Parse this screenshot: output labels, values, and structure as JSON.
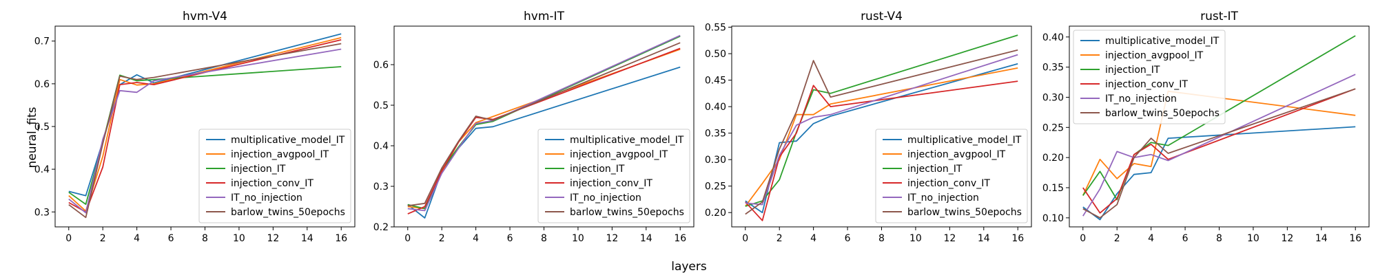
{
  "figure": {
    "supxlabel": "layers",
    "supylabel": "neural_fits"
  },
  "chart_data": [
    {
      "type": "line",
      "title": "hvm-V4",
      "xlabel": "",
      "ylabel": "",
      "xlim": [
        -0.8,
        16.8
      ],
      "ylim": [
        0.265,
        0.735
      ],
      "xticks": [
        0,
        2,
        4,
        6,
        8,
        10,
        12,
        14,
        16
      ],
      "yticks": [
        0.3,
        0.4,
        0.5,
        0.6,
        0.7
      ],
      "ytick_labels": [
        "0.3",
        "0.4",
        "0.5",
        "0.6",
        "0.7"
      ],
      "legend_position": "lower-right",
      "x": [
        0,
        1,
        2,
        3,
        4,
        5,
        16
      ],
      "series": [
        {
          "name": "multiplicative_model_IT",
          "color": "#1f77b4",
          "values": [
            0.348,
            0.338,
            0.465,
            0.598,
            0.621,
            0.602,
            0.717
          ]
        },
        {
          "name": "injection_avgpool_IT",
          "color": "#ff7f0e",
          "values": [
            0.338,
            0.302,
            0.43,
            0.61,
            0.597,
            0.6,
            0.708
          ]
        },
        {
          "name": "injection_IT",
          "color": "#2ca02c",
          "values": [
            0.346,
            0.318,
            0.463,
            0.62,
            0.607,
            0.61,
            0.64
          ]
        },
        {
          "name": "injection_conv_IT",
          "color": "#d62728",
          "values": [
            0.322,
            0.3,
            0.405,
            0.598,
            0.603,
            0.598,
            0.703
          ]
        },
        {
          "name": "IT_no_injection",
          "color": "#9467bd",
          "values": [
            0.33,
            0.298,
            0.47,
            0.584,
            0.58,
            0.607,
            0.681
          ]
        },
        {
          "name": "barlow_twins_50epochs",
          "color": "#8c564b",
          "values": [
            0.317,
            0.287,
            0.46,
            0.618,
            0.61,
            0.615,
            0.694
          ]
        }
      ]
    },
    {
      "type": "line",
      "title": "hvm-IT",
      "xlabel": "",
      "ylabel": "",
      "xlim": [
        -0.8,
        16.8
      ],
      "ylim": [
        0.2,
        0.695
      ],
      "xticks": [
        0,
        2,
        4,
        6,
        8,
        10,
        12,
        14,
        16
      ],
      "yticks": [
        0.2,
        0.3,
        0.4,
        0.5,
        0.6
      ],
      "ytick_labels": [
        "0.2",
        "0.3",
        "0.4",
        "0.5",
        "0.6"
      ],
      "legend_position": "lower-right",
      "x": [
        0,
        1,
        2,
        3,
        4,
        5,
        16
      ],
      "series": [
        {
          "name": "multiplicative_model_IT",
          "color": "#1f77b4",
          "values": [
            0.255,
            0.222,
            0.338,
            0.395,
            0.443,
            0.447,
            0.594
          ]
        },
        {
          "name": "injection_avgpool_IT",
          "color": "#ff7f0e",
          "values": [
            0.25,
            0.245,
            0.335,
            0.41,
            0.457,
            0.472,
            0.638
          ]
        },
        {
          "name": "injection_IT",
          "color": "#2ca02c",
          "values": [
            0.255,
            0.245,
            0.34,
            0.398,
            0.452,
            0.46,
            0.67
          ]
        },
        {
          "name": "injection_conv_IT",
          "color": "#d62728",
          "values": [
            0.232,
            0.25,
            0.338,
            0.41,
            0.47,
            0.465,
            0.64
          ]
        },
        {
          "name": "IT_no_injection",
          "color": "#9467bd",
          "values": [
            0.245,
            0.24,
            0.332,
            0.395,
            0.455,
            0.462,
            0.672
          ]
        },
        {
          "name": "barlow_twins_50epochs",
          "color": "#8c564b",
          "values": [
            0.252,
            0.258,
            0.345,
            0.412,
            0.473,
            0.463,
            0.654
          ]
        }
      ]
    },
    {
      "type": "line",
      "title": "rust-V4",
      "xlabel": "",
      "ylabel": "",
      "xlim": [
        -0.8,
        16.8
      ],
      "ylim": [
        0.173,
        0.552
      ],
      "xticks": [
        0,
        2,
        4,
        6,
        8,
        10,
        12,
        14,
        16
      ],
      "yticks": [
        0.2,
        0.25,
        0.3,
        0.35,
        0.4,
        0.45,
        0.5,
        0.55
      ],
      "ytick_labels": [
        "0.20",
        "0.25",
        "0.30",
        "0.35",
        "0.40",
        "0.45",
        "0.50",
        "0.55"
      ],
      "legend_position": "lower-right",
      "x": [
        0,
        1,
        2,
        3,
        4,
        5,
        16
      ],
      "series": [
        {
          "name": "multiplicative_model_IT",
          "color": "#1f77b4",
          "values": [
            0.222,
            0.2,
            0.332,
            0.335,
            0.368,
            0.382,
            0.481
          ]
        },
        {
          "name": "injection_avgpool_IT",
          "color": "#ff7f0e",
          "values": [
            0.212,
            0.255,
            0.3,
            0.385,
            0.385,
            0.405,
            0.473
          ]
        },
        {
          "name": "injection_IT",
          "color": "#2ca02c",
          "values": [
            0.212,
            0.222,
            0.262,
            0.352,
            0.432,
            0.425,
            0.535
          ]
        },
        {
          "name": "injection_conv_IT",
          "color": "#d62728",
          "values": [
            0.22,
            0.185,
            0.305,
            0.35,
            0.44,
            0.4,
            0.448
          ]
        },
        {
          "name": "IT_no_injection",
          "color": "#9467bd",
          "values": [
            0.218,
            0.215,
            0.308,
            0.365,
            0.38,
            0.385,
            0.498
          ]
        },
        {
          "name": "barlow_twins_50epochs",
          "color": "#8c564b",
          "values": [
            0.197,
            0.22,
            0.32,
            0.39,
            0.487,
            0.418,
            0.507
          ]
        }
      ]
    },
    {
      "type": "line",
      "title": "rust-IT",
      "xlabel": "",
      "ylabel": "",
      "xlim": [
        -0.8,
        16.8
      ],
      "ylim": [
        0.085,
        0.418
      ],
      "xticks": [
        0,
        2,
        4,
        6,
        8,
        10,
        12,
        14,
        16
      ],
      "yticks": [
        0.1,
        0.15,
        0.2,
        0.25,
        0.3,
        0.35,
        0.4
      ],
      "ytick_labels": [
        "0.10",
        "0.15",
        "0.20",
        "0.25",
        "0.30",
        "0.35",
        "0.40"
      ],
      "legend_position": "upper-left",
      "x": [
        0,
        1,
        2,
        3,
        4,
        5,
        16
      ],
      "series": [
        {
          "name": "multiplicative_model_IT",
          "color": "#1f77b4",
          "values": [
            0.118,
            0.097,
            0.14,
            0.172,
            0.175,
            0.232,
            0.251
          ]
        },
        {
          "name": "injection_avgpool_IT",
          "color": "#ff7f0e",
          "values": [
            0.137,
            0.197,
            0.165,
            0.19,
            0.185,
            0.31,
            0.27
          ]
        },
        {
          "name": "injection_IT",
          "color": "#2ca02c",
          "values": [
            0.137,
            0.177,
            0.13,
            0.205,
            0.225,
            0.22,
            0.402
          ]
        },
        {
          "name": "injection_conv_IT",
          "color": "#d62728",
          "values": [
            0.15,
            0.108,
            0.132,
            0.205,
            0.222,
            0.197,
            0.314
          ]
        },
        {
          "name": "IT_no_injection",
          "color": "#9467bd",
          "values": [
            0.103,
            0.148,
            0.21,
            0.2,
            0.205,
            0.195,
            0.338
          ]
        },
        {
          "name": "barlow_twins_50epochs",
          "color": "#8c564b",
          "values": [
            0.115,
            0.1,
            0.122,
            0.2,
            0.232,
            0.207,
            0.314
          ]
        }
      ]
    }
  ]
}
